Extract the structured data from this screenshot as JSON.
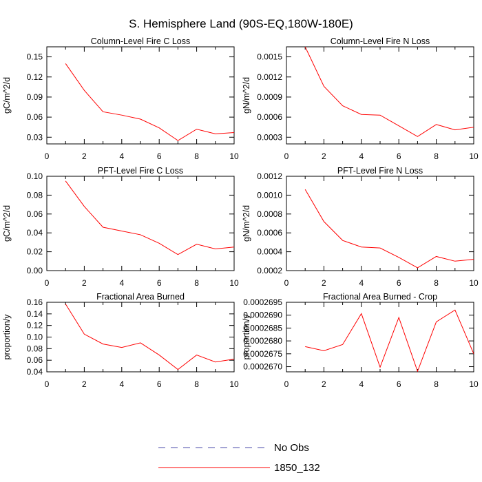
{
  "title": "S. Hemisphere Land (90S-EQ,180W-180E)",
  "legend": {
    "entries": [
      {
        "label": "No Obs",
        "color": "#4a4aa8",
        "dash": true
      },
      {
        "label": "1850_132",
        "color": "#ff0000",
        "dash": false
      }
    ]
  },
  "chart_data": [
    {
      "type": "line",
      "title": "Column-Level Fire C Loss",
      "ylabel": "gC/m^2/d",
      "xlim": [
        0,
        10
      ],
      "ylim": [
        0.02,
        0.165
      ],
      "xticks": [
        "0",
        "2",
        "4",
        "6",
        "8",
        "10"
      ],
      "yticks": [
        {
          "v": 0.03,
          "label": "0.03"
        },
        {
          "v": 0.06,
          "label": "0.06"
        },
        {
          "v": 0.09,
          "label": "0.09"
        },
        {
          "v": 0.12,
          "label": "0.12"
        },
        {
          "v": 0.15,
          "label": "0.15"
        }
      ],
      "series": [
        {
          "name": "1850_132",
          "color": "#ff0000",
          "x": [
            1,
            2,
            3,
            4,
            5,
            6,
            7,
            8,
            9,
            10
          ],
          "y": [
            0.14,
            0.1,
            0.068,
            0.063,
            0.057,
            0.044,
            0.025,
            0.042,
            0.035,
            0.037
          ]
        }
      ]
    },
    {
      "type": "line",
      "title": "Column-Level Fire N Loss",
      "ylabel": "gN/m^2/d",
      "xlim": [
        0,
        10
      ],
      "ylim": [
        0.0002,
        0.00165
      ],
      "xticks": [
        "0",
        "2",
        "4",
        "6",
        "8",
        "10"
      ],
      "yticks": [
        {
          "v": 0.0003,
          "label": "0.0003"
        },
        {
          "v": 0.0006,
          "label": "0.0006"
        },
        {
          "v": 0.0009,
          "label": "0.0009"
        },
        {
          "v": 0.0012,
          "label": "0.0012"
        },
        {
          "v": 0.0015,
          "label": "0.0015"
        }
      ],
      "series": [
        {
          "name": "1850_132",
          "color": "#ff0000",
          "x": [
            1,
            2,
            3,
            4,
            5,
            6,
            7,
            8,
            9,
            10
          ],
          "y": [
            0.00165,
            0.00106,
            0.00077,
            0.00064,
            0.00063,
            0.00047,
            0.00031,
            0.00049,
            0.00041,
            0.00045
          ]
        }
      ]
    },
    {
      "type": "line",
      "title": "PFT-Level Fire C Loss",
      "ylabel": "gC/m^2/d",
      "xlim": [
        0,
        10
      ],
      "ylim": [
        0.0,
        0.1
      ],
      "xticks": [
        "0",
        "2",
        "4",
        "6",
        "8",
        "10"
      ],
      "yticks": [
        {
          "v": 0.0,
          "label": "0.00"
        },
        {
          "v": 0.02,
          "label": "0.02"
        },
        {
          "v": 0.04,
          "label": "0.04"
        },
        {
          "v": 0.06,
          "label": "0.06"
        },
        {
          "v": 0.08,
          "label": "0.08"
        },
        {
          "v": 0.1,
          "label": "0.10"
        }
      ],
      "series": [
        {
          "name": "1850_132",
          "color": "#ff0000",
          "x": [
            1,
            2,
            3,
            4,
            5,
            6,
            7,
            8,
            9,
            10
          ],
          "y": [
            0.095,
            0.068,
            0.046,
            0.042,
            0.038,
            0.029,
            0.017,
            0.028,
            0.023,
            0.025
          ]
        }
      ]
    },
    {
      "type": "line",
      "title": "PFT-Level Fire N Loss",
      "ylabel": "gN/m^2/d",
      "xlim": [
        0,
        10
      ],
      "ylim": [
        0.0002,
        0.0012
      ],
      "xticks": [
        "0",
        "2",
        "4",
        "6",
        "8",
        "10"
      ],
      "yticks": [
        {
          "v": 0.0002,
          "label": "0.0002"
        },
        {
          "v": 0.0004,
          "label": "0.0004"
        },
        {
          "v": 0.0006,
          "label": "0.0006"
        },
        {
          "v": 0.0008,
          "label": "0.0008"
        },
        {
          "v": 0.001,
          "label": "0.0010"
        },
        {
          "v": 0.0012,
          "label": "0.0012"
        }
      ],
      "series": [
        {
          "name": "1850_132",
          "color": "#ff0000",
          "x": [
            1,
            2,
            3,
            4,
            5,
            6,
            7,
            8,
            9,
            10
          ],
          "y": [
            0.00106,
            0.00072,
            0.00052,
            0.00045,
            0.00044,
            0.00034,
            0.00023,
            0.00035,
            0.0003,
            0.00032
          ]
        }
      ]
    },
    {
      "type": "line",
      "title": "Fractional Area Burned",
      "ylabel": "proportion/y",
      "xlim": [
        0,
        10
      ],
      "ylim": [
        0.04,
        0.16
      ],
      "xticks": [
        "0",
        "2",
        "4",
        "6",
        "8",
        "10"
      ],
      "yticks": [
        {
          "v": 0.04,
          "label": "0.04"
        },
        {
          "v": 0.06,
          "label": "0.06"
        },
        {
          "v": 0.08,
          "label": "0.08"
        },
        {
          "v": 0.1,
          "label": "0.10"
        },
        {
          "v": 0.12,
          "label": "0.12"
        },
        {
          "v": 0.14,
          "label": "0.14"
        },
        {
          "v": 0.16,
          "label": "0.16"
        }
      ],
      "series": [
        {
          "name": "1850_132",
          "color": "#ff0000",
          "x": [
            1,
            2,
            3,
            4,
            5,
            6,
            7,
            8,
            9,
            10
          ],
          "y": [
            0.157,
            0.105,
            0.088,
            0.082,
            0.09,
            0.069,
            0.044,
            0.069,
            0.057,
            0.062
          ]
        }
      ]
    },
    {
      "type": "line",
      "title": "Fractional Area Burned - Crop",
      "ylabel": "proportion/y",
      "xlim": [
        0,
        10
      ],
      "ylim": [
        0.0002668,
        0.0002695
      ],
      "xticks": [
        "0",
        "2",
        "4",
        "6",
        "8",
        "10"
      ],
      "yticks": [
        {
          "v": 0.000267,
          "label": "0.0002670"
        },
        {
          "v": 0.0002675,
          "label": "0.0002675"
        },
        {
          "v": 0.000268,
          "label": "0.0002680"
        },
        {
          "v": 0.0002685,
          "label": "0.0002685"
        },
        {
          "v": 0.000269,
          "label": "0.0002690"
        },
        {
          "v": 0.0002695,
          "label": "0.0002695"
        }
      ],
      "series": [
        {
          "name": "1850_132",
          "color": "#ff0000",
          "x": [
            1,
            2,
            3,
            4,
            5,
            6,
            7,
            8,
            9,
            10
          ],
          "y": [
            0.00026778,
            0.00026762,
            0.00026786,
            0.00026906,
            0.00026698,
            0.00026891,
            0.00026682,
            0.00026874,
            0.0002692,
            0.0002675
          ]
        }
      ]
    }
  ]
}
